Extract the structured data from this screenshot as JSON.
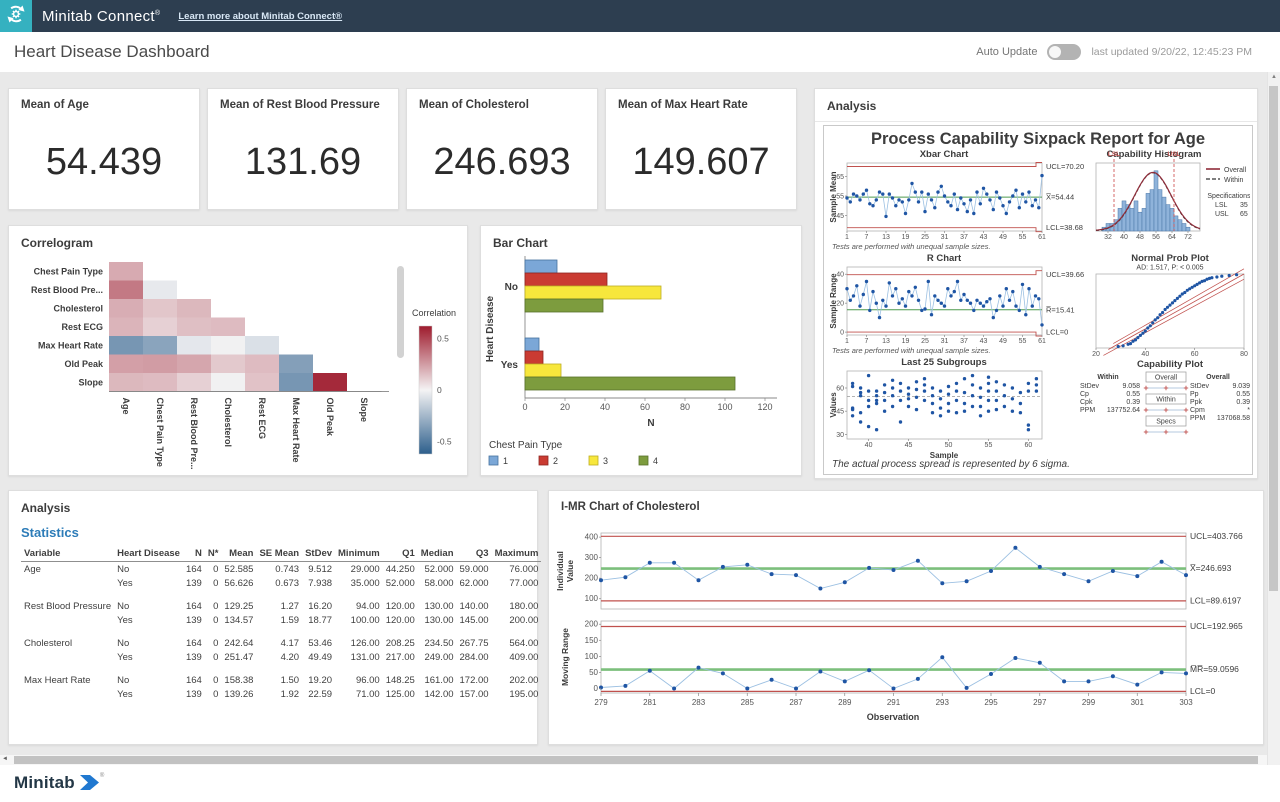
{
  "topbar": {
    "brand": "Minitab Connect",
    "reg": "®",
    "link": "Learn more about Minitab Connect®"
  },
  "header": {
    "title": "Heart Disease Dashboard",
    "auto_update_label": "Auto Update",
    "last_updated": "last updated 9/20/22, 12:45:23 PM"
  },
  "footer": {
    "brand": "Minitab",
    "reg": "®"
  },
  "colors": {
    "navbar": "#2d3e50",
    "logo_teal": "#35b1c0",
    "page_bg": "#e9e9e9",
    "accent_blue": "#2d7cb8",
    "point_blue": "#1f55a4",
    "line_blue": "#9cc0e2",
    "limit_red": "#c0504d",
    "center_green": "#4e9a4e",
    "imr_green": "#7cbf7c",
    "corr_pos": "#9e1b2d",
    "corr_neg": "#2d5f8c"
  },
  "kpis": [
    {
      "title": "Mean of Age",
      "value": "54.439"
    },
    {
      "title": "Mean of Rest Blood Pressure",
      "value": "131.69"
    },
    {
      "title": "Mean of Cholesterol",
      "value": "246.693"
    },
    {
      "title": "Mean of Max Heart Rate",
      "value": "149.607"
    }
  ],
  "cards": {
    "sixpack_title": "Analysis",
    "correlogram_title": "Correlogram",
    "bar_title": "Bar Chart",
    "stats_title": "Analysis"
  },
  "stats": {
    "heading": "Statistics",
    "columns": [
      "Variable",
      "Heart Disease",
      "N",
      "N*",
      "Mean",
      "SE Mean",
      "StDev",
      "Minimum",
      "Q1",
      "Median",
      "Q3",
      "Maximum"
    ],
    "rows": [
      [
        "Age",
        "No",
        "164",
        "0",
        "52.585",
        "0.743",
        "9.512",
        "29.000",
        "44.250",
        "52.000",
        "59.000",
        "76.000"
      ],
      [
        "",
        "Yes",
        "139",
        "0",
        "56.626",
        "0.673",
        "7.938",
        "35.000",
        "52.000",
        "58.000",
        "62.000",
        "77.000"
      ],
      null,
      [
        "Rest Blood Pressure",
        "No",
        "164",
        "0",
        "129.25",
        "1.27",
        "16.20",
        "94.00",
        "120.00",
        "130.00",
        "140.00",
        "180.00"
      ],
      [
        "",
        "Yes",
        "139",
        "0",
        "134.57",
        "1.59",
        "18.77",
        "100.00",
        "120.00",
        "130.00",
        "145.00",
        "200.00"
      ],
      null,
      [
        "Cholesterol",
        "No",
        "164",
        "0",
        "242.64",
        "4.17",
        "53.46",
        "126.00",
        "208.25",
        "234.50",
        "267.75",
        "564.00"
      ],
      [
        "",
        "Yes",
        "139",
        "0",
        "251.47",
        "4.20",
        "49.49",
        "131.00",
        "217.00",
        "249.00",
        "284.00",
        "409.00"
      ],
      null,
      [
        "Max Heart Rate",
        "No",
        "164",
        "0",
        "158.38",
        "1.50",
        "19.20",
        "96.00",
        "148.25",
        "161.00",
        "172.00",
        "202.00"
      ],
      [
        "",
        "Yes",
        "139",
        "0",
        "139.26",
        "1.92",
        "22.59",
        "71.00",
        "125.00",
        "142.00",
        "157.00",
        "195.00"
      ]
    ]
  },
  "chart_data": [
    {
      "type": "heatmap",
      "title": "Correlogram",
      "x_labels": [
        "Age",
        "Chest Pain Type",
        "Rest Blood Pre...",
        "Cholesterol",
        "Rest ECG",
        "Max Heart Rate",
        "Old Peak",
        "Slope"
      ],
      "y_labels": [
        "Chest Pain Type",
        "Rest Blood Pre...",
        "Cholesterol",
        "Rest ECG",
        "Max Heart Rate",
        "Old Peak",
        "Slope"
      ],
      "values": [
        [
          0.21
        ],
        [
          0.35,
          -0.04
        ],
        [
          0.2,
          0.13,
          0.17
        ],
        [
          0.18,
          0.1,
          0.15,
          0.16
        ],
        [
          -0.39,
          -0.33,
          -0.05,
          -0.01,
          -0.08
        ],
        [
          0.24,
          0.25,
          0.22,
          0.12,
          0.16,
          -0.35
        ],
        [
          0.17,
          0.16,
          0.1,
          -0.01,
          0.14,
          -0.39,
          0.58
        ]
      ],
      "legend": {
        "title": "Correlation",
        "ticks": [
          "0.5",
          "0",
          "-0.5"
        ],
        "tick_values": [
          0.5,
          0,
          -0.5
        ],
        "domain": [
          -0.62,
          0.62
        ]
      }
    },
    {
      "type": "bar",
      "orientation": "horizontal",
      "title": "Bar Chart",
      "categories": [
        "No",
        "Yes"
      ],
      "series": [
        {
          "name": "1",
          "fill": "#7ba7d7",
          "stroke": "#46729f",
          "values": [
            16,
            7
          ]
        },
        {
          "name": "2",
          "fill": "#ca3b32",
          "stroke": "#8f2721",
          "values": [
            41,
            9
          ]
        },
        {
          "name": "3",
          "fill": "#f7e73c",
          "stroke": "#bdae22",
          "values": [
            68,
            18
          ]
        },
        {
          "name": "4",
          "fill": "#7d9c3e",
          "stroke": "#59722a",
          "values": [
            39,
            105
          ]
        }
      ],
      "xlabel": "N",
      "ylabel": "Heart Disease",
      "xlim": [
        0,
        120
      ],
      "xticks": [
        0,
        20,
        40,
        60,
        80,
        100,
        120
      ],
      "legend_title": "Chest Pain Type"
    },
    {
      "type": "composite",
      "title": "Process Capability Sixpack Report for Age",
      "xbar": {
        "title": "Xbar Chart",
        "ylabel": "Sample Mean",
        "yticks": [
          45,
          55,
          65
        ],
        "xticks": [
          1,
          7,
          13,
          19,
          25,
          31,
          37,
          43,
          49,
          55,
          61
        ],
        "ucl": 70.2,
        "center": 54.44,
        "lcl": 38.68,
        "labels": [
          "UCL=70.20",
          "X̿=54.44",
          "LCL=38.68"
        ],
        "note": "Tests are performed with unequal sample sizes.",
        "values": [
          54,
          52,
          56,
          55,
          53,
          56,
          58,
          51,
          50,
          53,
          57,
          56,
          44.5,
          56,
          54,
          50,
          53,
          52,
          46,
          53,
          61.5,
          57,
          52,
          57,
          47,
          56,
          53,
          49,
          57,
          60,
          55,
          52,
          50,
          56,
          48,
          54,
          51,
          47,
          53,
          46,
          57,
          51,
          59,
          56,
          53,
          48,
          57,
          54,
          50,
          46,
          52,
          55,
          58,
          49,
          56,
          52,
          57,
          50,
          53,
          49,
          65.5
        ]
      },
      "r": {
        "title": "R Chart",
        "ylabel": "Sample Range",
        "yticks": [
          0,
          20,
          40
        ],
        "xticks": [
          1,
          7,
          13,
          19,
          25,
          31,
          37,
          43,
          49,
          55,
          61
        ],
        "ucl": 39.66,
        "center": 15.41,
        "lcl": 0,
        "labels": [
          "UCL=39.66",
          "R̅=15.41",
          "LCL=0"
        ],
        "note": "Tests are performed with unequal sample sizes.",
        "values": [
          30,
          22,
          25,
          32,
          18,
          26,
          35,
          15,
          28,
          20,
          10,
          22,
          18,
          34,
          25,
          30,
          20,
          23,
          18,
          28,
          25,
          31,
          22,
          15,
          16,
          35,
          12,
          25,
          22,
          20,
          18,
          30,
          25,
          28,
          35,
          22,
          26,
          22,
          20,
          15,
          22,
          20,
          18,
          21,
          23,
          10,
          15,
          25,
          18,
          30,
          22,
          28,
          18,
          15,
          33,
          12,
          30,
          18,
          25,
          23,
          5
        ]
      },
      "last25": {
        "title": "Last 25 Subgroups",
        "xlabel": "Sample",
        "ylabel": "Values",
        "yticks": [
          30,
          45,
          60
        ],
        "xticks": [
          40,
          45,
          50,
          55,
          60
        ],
        "centerline": 54.44,
        "groups": {
          "38": [
            63,
            61,
            47,
            46,
            42
          ],
          "39": [
            60,
            57,
            55,
            44,
            38
          ],
          "40": [
            68,
            58,
            52,
            48,
            35
          ],
          "41": [
            58,
            55,
            52,
            50,
            33
          ],
          "42": [
            62,
            57,
            52,
            45
          ],
          "43": [
            65,
            60,
            55,
            48
          ],
          "44": [
            63,
            58,
            52,
            38
          ],
          "45": [
            60,
            56,
            53,
            48
          ],
          "46": [
            64,
            59,
            54,
            46
          ],
          "47": [
            66,
            62,
            58,
            52
          ],
          "48": [
            60,
            55,
            50,
            44
          ],
          "49": [
            58,
            53,
            47,
            42
          ],
          "50": [
            61,
            56,
            50,
            45
          ],
          "51": [
            63,
            58,
            52,
            44
          ],
          "52": [
            66,
            57,
            50,
            45
          ],
          "53": [
            68,
            62,
            55,
            48
          ],
          "54": [
            60,
            54,
            48,
            42
          ],
          "55": [
            67,
            63,
            58,
            52,
            45
          ],
          "56": [
            64,
            58,
            52,
            46
          ],
          "57": [
            62,
            55,
            48
          ],
          "58": [
            60,
            53,
            45
          ],
          "59": [
            57,
            50,
            44
          ],
          "60": [
            63,
            58,
            36,
            33
          ],
          "61": [
            66,
            62,
            58
          ]
        }
      },
      "hist": {
        "title": "Capability Histogram",
        "xticks": [
          32,
          40,
          48,
          56,
          64,
          72
        ],
        "lsl_label": "LSL",
        "usl_label": "USL",
        "lsl": 35,
        "usl": 65,
        "mean": 54.44,
        "sd": 9.04,
        "bin_start": 29,
        "bin_width": 2,
        "counts": [
          1,
          2,
          2,
          3,
          6,
          8,
          7,
          6,
          8,
          5,
          6,
          10,
          11,
          16,
          11,
          9,
          7,
          6,
          4,
          3,
          2,
          1
        ],
        "legend": [
          {
            "label": "Overall",
            "style": "solid"
          },
          {
            "label": "Within",
            "style": "dashed"
          }
        ],
        "spec_title": "Specifications",
        "specs": [
          [
            "LSL",
            "35"
          ],
          [
            "USL",
            "65"
          ]
        ]
      },
      "npp": {
        "title": "Normal Prob Plot",
        "subtitle": "AD: 1.517, P: < 0.005",
        "xticks": [
          20,
          40,
          60,
          80
        ],
        "points": [
          [
            29,
            0.02
          ],
          [
            31,
            0.03
          ],
          [
            33,
            0.05
          ],
          [
            34,
            0.06
          ],
          [
            35,
            0.09
          ],
          [
            36,
            0.11
          ],
          [
            37,
            0.14
          ],
          [
            38,
            0.17
          ],
          [
            39,
            0.2
          ],
          [
            40,
            0.23
          ],
          [
            41,
            0.27
          ],
          [
            42,
            0.3
          ],
          [
            43,
            0.34
          ],
          [
            44,
            0.38
          ],
          [
            45,
            0.41
          ],
          [
            46,
            0.45
          ],
          [
            47,
            0.48
          ],
          [
            48,
            0.52
          ],
          [
            49,
            0.55
          ],
          [
            50,
            0.58
          ],
          [
            51,
            0.61
          ],
          [
            52,
            0.64
          ],
          [
            53,
            0.67
          ],
          [
            54,
            0.7
          ],
          [
            55,
            0.73
          ],
          [
            56,
            0.75
          ],
          [
            57,
            0.78
          ],
          [
            58,
            0.8
          ],
          [
            59,
            0.82
          ],
          [
            60,
            0.84
          ],
          [
            61,
            0.86
          ],
          [
            62,
            0.88
          ],
          [
            63,
            0.9
          ],
          [
            64,
            0.91
          ],
          [
            65,
            0.93
          ],
          [
            66,
            0.94
          ],
          [
            67,
            0.95
          ],
          [
            69,
            0.96
          ],
          [
            71,
            0.97
          ],
          [
            74,
            0.98
          ],
          [
            77,
            0.99
          ]
        ]
      },
      "capplot": {
        "title": "Capability Plot",
        "within": {
          "label": "Within",
          "rows": [
            [
              "StDev",
              "9.058"
            ],
            [
              "Cp",
              "0.55"
            ],
            [
              "Cpk",
              "0.39"
            ],
            [
              "PPM",
              "137752.64"
            ]
          ]
        },
        "overall": {
          "label": "Overall",
          "rows": [
            [
              "StDev",
              "9.039"
            ],
            [
              "Pp",
              "0.55"
            ],
            [
              "Ppk",
              "0.39"
            ],
            [
              "Cpm",
              "*"
            ],
            [
              "PPM",
              "137068.58"
            ]
          ]
        },
        "boxes": [
          "Overall",
          "Within",
          "Specs"
        ]
      },
      "footnote": "The actual process spread is represented by 6 sigma."
    },
    {
      "type": "control",
      "title": "I-MR Chart of Cholesterol",
      "xlabel": "Observation",
      "x_start": 279,
      "xticks": [
        279,
        281,
        283,
        285,
        287,
        289,
        291,
        293,
        295,
        297,
        299,
        301,
        303
      ],
      "individual": {
        "ylabel": [
          "Individual",
          "Value"
        ],
        "yticks": [
          100,
          200,
          300,
          400
        ],
        "ucl": 403.766,
        "center": 246.693,
        "lcl": 89.6197,
        "labels": [
          "UCL=403.766",
          "X̅=246.693",
          "LCL=89.6197"
        ],
        "values": [
          190,
          205,
          275,
          275,
          190,
          255,
          265,
          220,
          215,
          150,
          180,
          250,
          240,
          285,
          175,
          185,
          235,
          348,
          255,
          220,
          185,
          235,
          210,
          280,
          215
        ]
      },
      "mr": {
        "ylabel": [
          "Moving Range"
        ],
        "yticks": [
          0,
          50,
          100,
          150,
          200
        ],
        "ucl": 192.965,
        "center": 59.0596,
        "lcl": 0,
        "labels": [
          "UCL=192.965",
          "M̅R̅=59.0596",
          "LCL=0"
        ],
        "values": [
          3,
          8,
          55,
          0,
          65,
          47,
          0,
          27,
          0,
          53,
          22,
          57,
          0,
          30,
          97,
          2,
          45,
          95,
          80,
          22,
          22,
          38,
          12,
          50,
          47
        ]
      }
    }
  ]
}
